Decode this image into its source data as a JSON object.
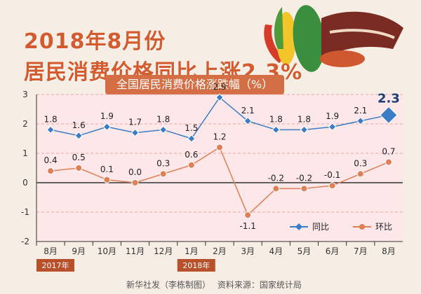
{
  "header": {
    "title_line1": "2018年8月份",
    "title_line2": "居民消费价格同比上涨2.3%",
    "banner": "全国居民消费价格涨跌幅（%）"
  },
  "footer": {
    "agency": "新华社发（李栋制图）",
    "source": "资料来源：国家统计局"
  },
  "chart_data": {
    "type": "line",
    "categories": [
      "8月",
      "9月",
      "10月",
      "11月",
      "12月",
      "1月",
      "2月",
      "3月",
      "4月",
      "5月",
      "6月",
      "7月",
      "8月"
    ],
    "year_labels": [
      {
        "label": "2017年",
        "start": 0
      },
      {
        "label": "2018年",
        "start": 5
      }
    ],
    "series": [
      {
        "name": "同比",
        "color": "#3a7cc6",
        "values": [
          1.8,
          1.6,
          1.9,
          1.7,
          1.8,
          1.5,
          2.9,
          2.1,
          1.8,
          1.8,
          1.9,
          2.1,
          2.3
        ]
      },
      {
        "name": "环比",
        "color": "#de7f56",
        "values": [
          0.4,
          0.5,
          0.1,
          0.0,
          0.3,
          0.6,
          1.2,
          -1.1,
          -0.2,
          -0.2,
          -0.1,
          0.3,
          0.7
        ]
      }
    ],
    "ylim": [
      -2,
      3
    ],
    "yticks": [
      -2,
      -1,
      0,
      1,
      2,
      3
    ],
    "legend": "bottom-right"
  }
}
